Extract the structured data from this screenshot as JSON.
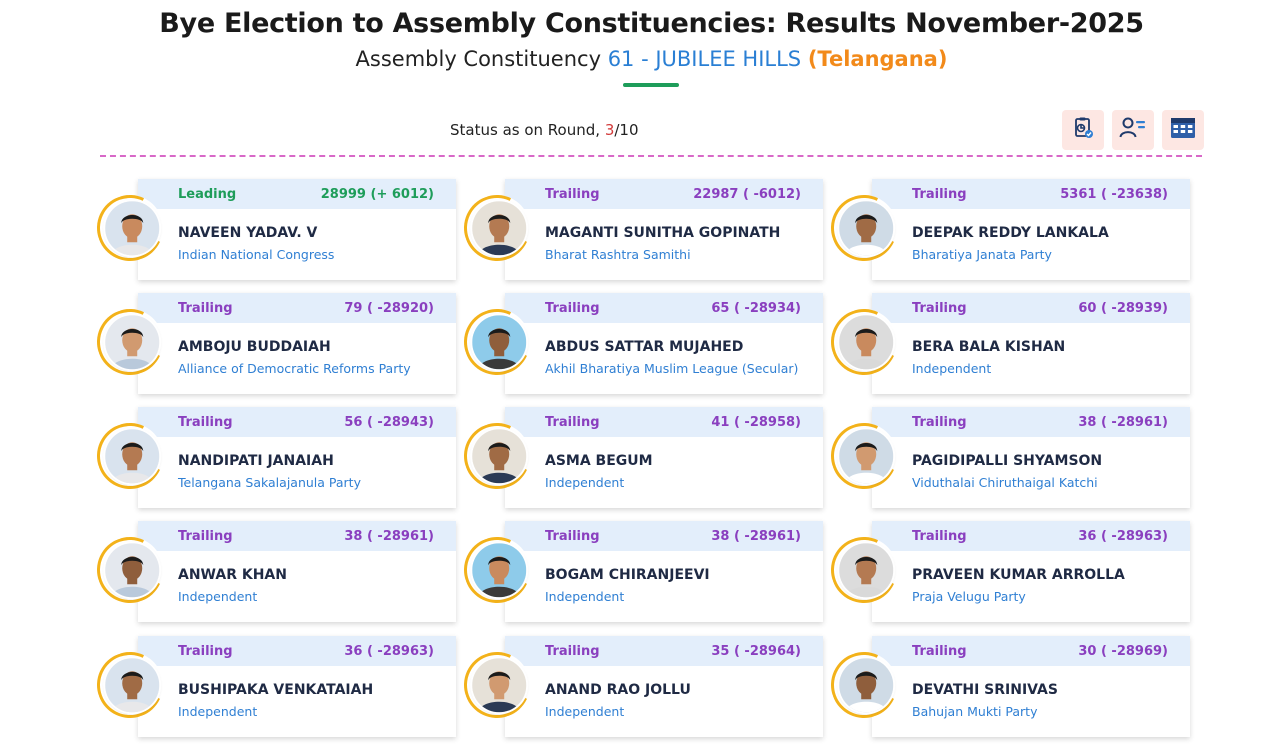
{
  "header": {
    "title": "Bye Election to Assembly Constituencies: Results November-2025",
    "subtitle_prefix": "Assembly Constituency",
    "constituency": "61 - JUBILEE HILLS",
    "state": "(Telangana)"
  },
  "status": {
    "prefix": "Status as on Round,",
    "current_round": "3",
    "total_rounds": "/10"
  },
  "toolbar": {
    "icons": [
      "report-icon",
      "candidate-list-icon",
      "table-grid-icon"
    ]
  },
  "colors": {
    "leading": "#1e9d5a",
    "trailing": "#8a3fbf",
    "party_text": "#2f7fd3",
    "ring": "#f3b21a",
    "card_header_bg": "#e3eefb"
  },
  "candidates": [
    {
      "status": "Leading",
      "votes": "28999 (+ 6012)",
      "name": "NAVEEN YADAV. V",
      "party": "Indian National Congress"
    },
    {
      "status": "Trailing",
      "votes": "22987 ( -6012)",
      "name": "MAGANTI SUNITHA GOPINATH",
      "party": "Bharat Rashtra Samithi"
    },
    {
      "status": "Trailing",
      "votes": "5361 ( -23638)",
      "name": "DEEPAK REDDY LANKALA",
      "party": "Bharatiya Janata Party"
    },
    {
      "status": "Trailing",
      "votes": "79 ( -28920)",
      "name": "AMBOJU BUDDAIAH",
      "party": "Alliance of Democratic Reforms Party"
    },
    {
      "status": "Trailing",
      "votes": "65 ( -28934)",
      "name": "ABDUS SATTAR MUJAHED",
      "party": "Akhil Bharatiya Muslim League (Secular)"
    },
    {
      "status": "Trailing",
      "votes": "60 ( -28939)",
      "name": "BERA BALA KISHAN",
      "party": "Independent"
    },
    {
      "status": "Trailing",
      "votes": "56 ( -28943)",
      "name": "NANDIPATI JANAIAH",
      "party": "Telangana Sakalajanula Party"
    },
    {
      "status": "Trailing",
      "votes": "41 ( -28958)",
      "name": "ASMA BEGUM",
      "party": "Independent"
    },
    {
      "status": "Trailing",
      "votes": "38 ( -28961)",
      "name": "PAGIDIPALLI SHYAMSON",
      "party": "Viduthalai Chiruthaigal Katchi"
    },
    {
      "status": "Trailing",
      "votes": "38 ( -28961)",
      "name": "ANWAR KHAN",
      "party": "Independent"
    },
    {
      "status": "Trailing",
      "votes": "38 ( -28961)",
      "name": "BOGAM CHIRANJEEVI",
      "party": "Independent"
    },
    {
      "status": "Trailing",
      "votes": "36 ( -28963)",
      "name": "PRAVEEN KUMAR ARROLLA",
      "party": "Praja Velugu Party"
    },
    {
      "status": "Trailing",
      "votes": "36 ( -28963)",
      "name": "BUSHIPAKA VENKATAIAH",
      "party": "Independent"
    },
    {
      "status": "Trailing",
      "votes": "35 ( -28964)",
      "name": "ANAND RAO JOLLU",
      "party": "Independent"
    },
    {
      "status": "Trailing",
      "votes": "30 ( -28969)",
      "name": "DEVATHI SRINIVAS",
      "party": "Bahujan Mukti Party"
    }
  ]
}
